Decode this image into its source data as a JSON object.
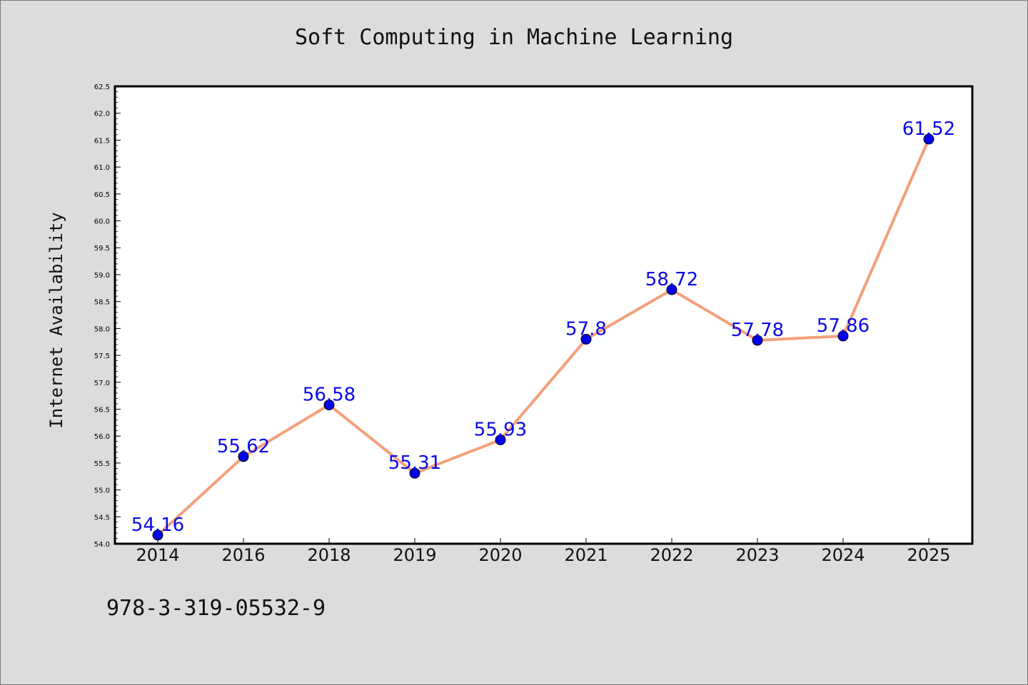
{
  "chart_data": {
    "type": "line",
    "title": "Soft Computing in Machine Learning",
    "xlabel": "",
    "ylabel": "Internet Availability",
    "categories": [
      "2014",
      "2016",
      "2018",
      "2019",
      "2020",
      "2021",
      "2022",
      "2023",
      "2024",
      "2025"
    ],
    "series": [
      {
        "values": [
          54.16,
          55.62,
          56.58,
          55.31,
          55.93,
          57.8,
          58.72,
          57.78,
          57.86,
          61.52
        ],
        "labels": [
          "54.16",
          "55.62",
          "56.58",
          "55.31",
          "55.93",
          "57.8",
          "58.72",
          "57.78",
          "57.86",
          "61.52"
        ]
      }
    ],
    "ylim": [
      54.0,
      62.5
    ],
    "yticks": [
      "54.0",
      "54.5",
      "55.0",
      "55.5",
      "56.0",
      "56.5",
      "57.0",
      "57.5",
      "58.0",
      "58.5",
      "59.0",
      "59.5",
      "60.0",
      "60.5",
      "61.0",
      "61.5",
      "62.0",
      "62.5"
    ],
    "grid": false,
    "legend": "none",
    "colors": {
      "line": "#f4a07a",
      "marker": "#0000ee",
      "data_label": "#0a0ae6",
      "background": "#dcdcdc",
      "plot_background": "#ffffff"
    }
  },
  "footer": {
    "isbn": "978-3-319-05532-9"
  }
}
